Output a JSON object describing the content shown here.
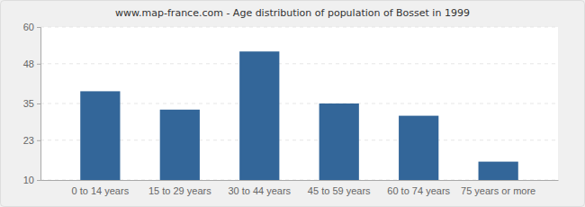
{
  "chart_data": {
    "type": "bar",
    "title": "www.map-france.com - Age distribution of population of Bosset in 1999",
    "categories": [
      "0 to 14 years",
      "15 to 29 years",
      "30 to 44 years",
      "45 to 59 years",
      "60 to 74 years",
      "75 years or more"
    ],
    "values": [
      39,
      33,
      52,
      35,
      31,
      16
    ],
    "color": "#336699",
    "ylim": [
      10,
      60
    ],
    "yticks": [
      10,
      23,
      35,
      48,
      60
    ],
    "grid": true
  }
}
